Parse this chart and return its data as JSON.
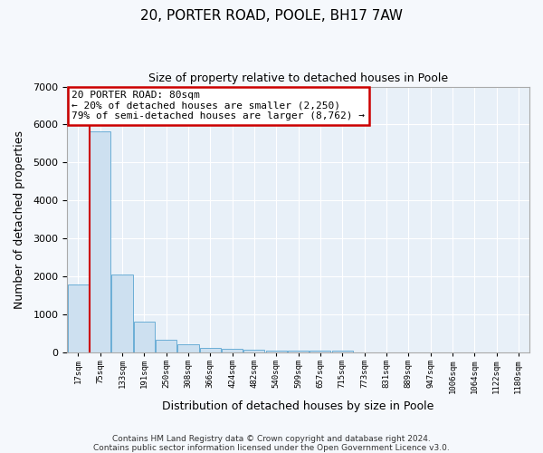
{
  "title_line1": "20, PORTER ROAD, POOLE, BH17 7AW",
  "title_line2": "Size of property relative to detached houses in Poole",
  "xlabel": "Distribution of detached houses by size in Poole",
  "ylabel": "Number of detached properties",
  "bar_color": "#cde0f0",
  "bar_edge_color": "#6baed6",
  "bg_color": "#e8f0f8",
  "grid_color": "#ffffff",
  "categories": [
    "17sqm",
    "75sqm",
    "133sqm",
    "191sqm",
    "250sqm",
    "308sqm",
    "366sqm",
    "424sqm",
    "482sqm",
    "540sqm",
    "599sqm",
    "657sqm",
    "715sqm",
    "773sqm",
    "831sqm",
    "889sqm",
    "947sqm",
    "1006sqm",
    "1064sqm",
    "1122sqm",
    "1180sqm"
  ],
  "values": [
    1780,
    5820,
    2050,
    820,
    330,
    210,
    130,
    100,
    75,
    60,
    55,
    50,
    50,
    0,
    0,
    0,
    0,
    0,
    0,
    0,
    0
  ],
  "ylim": [
    0,
    7000
  ],
  "yticks": [
    0,
    1000,
    2000,
    3000,
    4000,
    5000,
    6000,
    7000
  ],
  "red_line_bar_index": 1,
  "annotation_text": "20 PORTER ROAD: 80sqm\n← 20% of detached houses are smaller (2,250)\n79% of semi-detached houses are larger (8,762) →",
  "annotation_box_color": "#ffffff",
  "annotation_edge_color": "#cc0000",
  "footer_line1": "Contains HM Land Registry data © Crown copyright and database right 2024.",
  "footer_line2": "Contains public sector information licensed under the Open Government Licence v3.0.",
  "fig_bg_color": "#f5f8fc"
}
